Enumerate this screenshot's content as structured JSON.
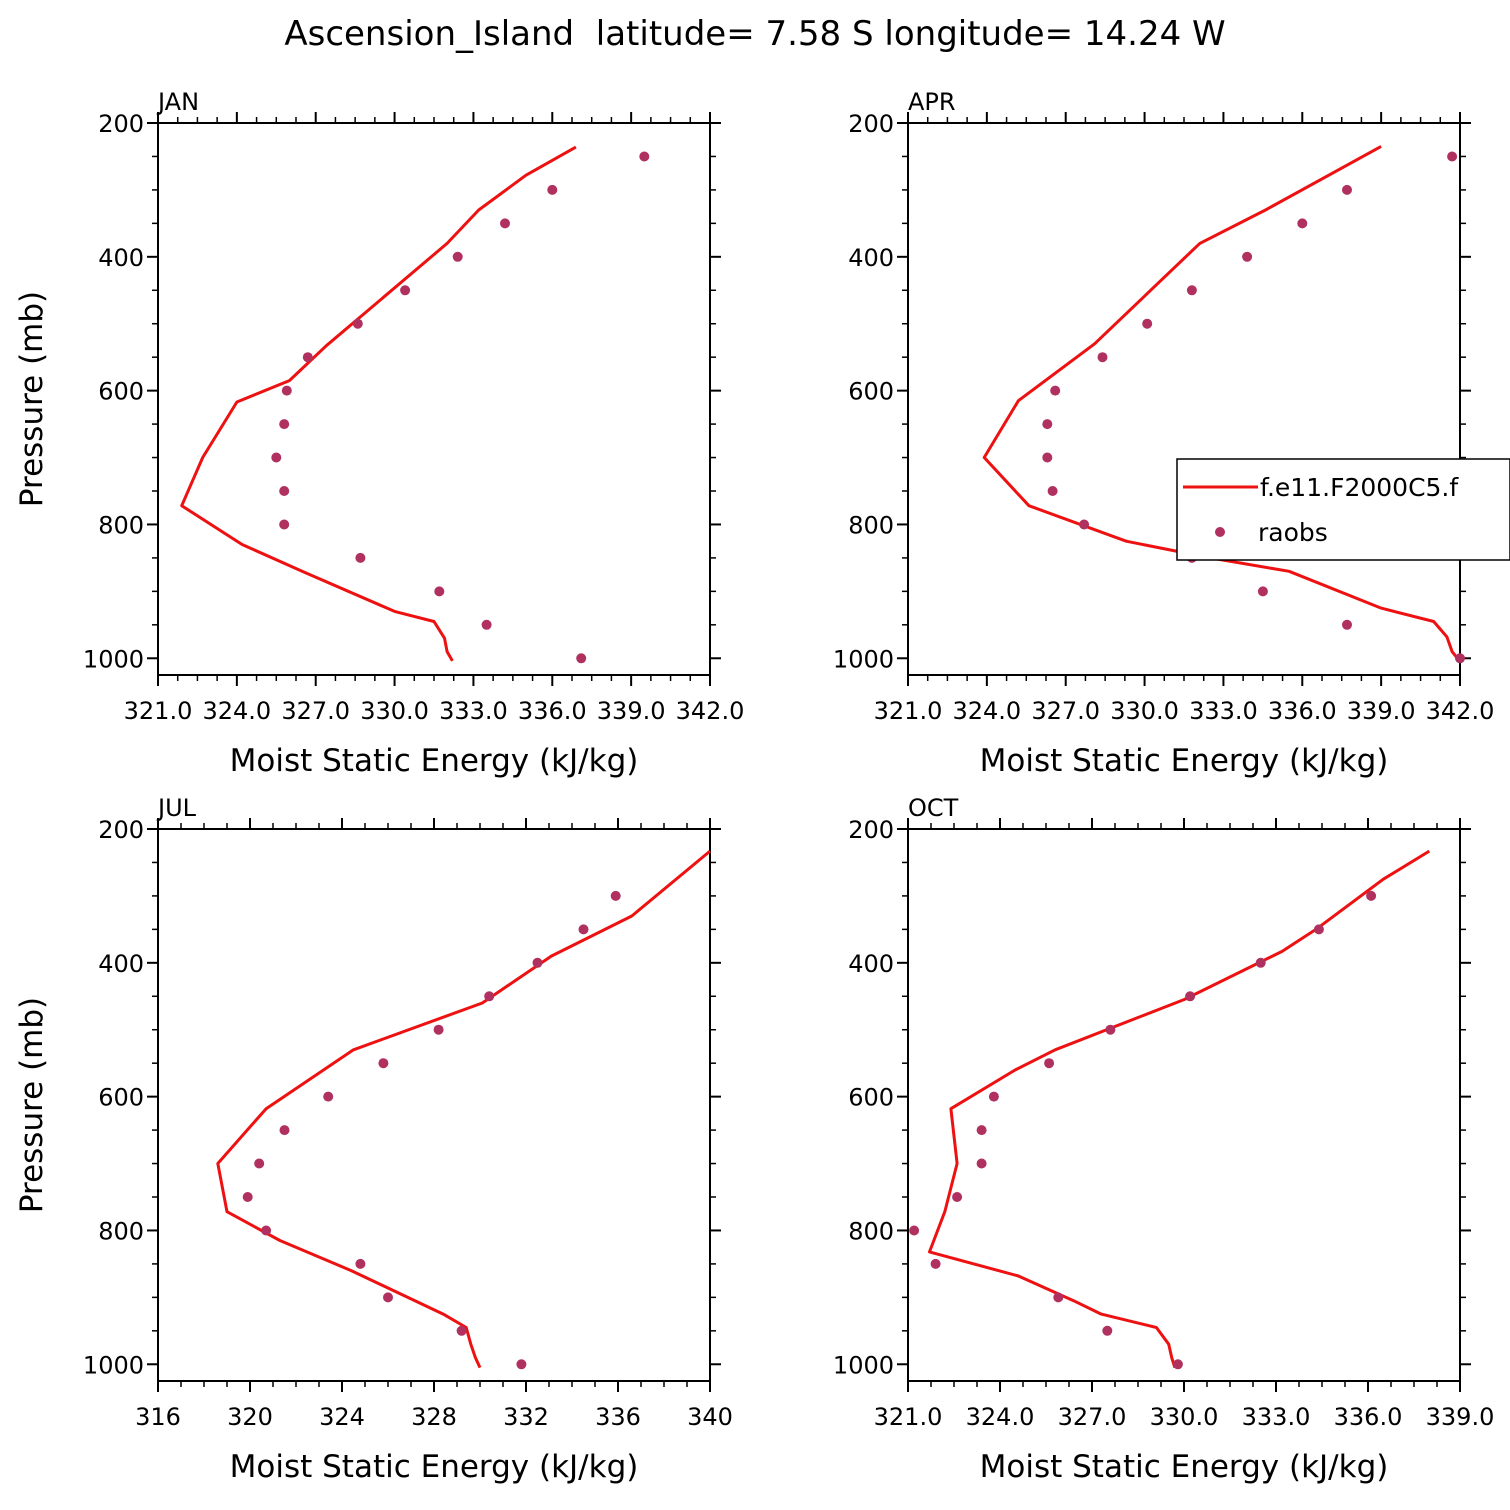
{
  "figure": {
    "title": "Ascension_Island  latitude= 7.58 S longitude= 14.24 W"
  },
  "legend": {
    "model_label": "f.e11.F2000C5.f",
    "obs_label": "raobs",
    "location": "right of APR panel"
  },
  "colors": {
    "model_line": "#ee1111",
    "obs_marker": "#b03060"
  },
  "chart_data": [
    {
      "type": "line",
      "panel": "JAN",
      "title": "JAN",
      "xlabel": "Moist Static Energy (kJ/kg)",
      "ylabel": "Pressure (mb)",
      "xlim": [
        321.0,
        342.0
      ],
      "ylim": [
        1025,
        200
      ],
      "y_inverted": true,
      "xticks": [
        321.0,
        324.0,
        327.0,
        330.0,
        333.0,
        336.0,
        339.0,
        342.0
      ],
      "xtick_labels": [
        "321.0",
        "324.0",
        "327.0",
        "330.0",
        "333.0",
        "336.0",
        "339.0",
        "342.0"
      ],
      "yticks": [
        200,
        400,
        600,
        800,
        1000
      ],
      "ytick_labels": [
        "200",
        "400",
        "600",
        "800",
        "1000"
      ],
      "series": [
        {
          "name": "f.e11.F2000C5.f",
          "kind": "line",
          "points": [
            [
              336.9,
              236
            ],
            [
              335.0,
              278
            ],
            [
              333.2,
              330
            ],
            [
              332.0,
              380
            ],
            [
              327.4,
              533
            ],
            [
              326.0,
              585
            ],
            [
              324.0,
              617
            ],
            [
              322.7,
              700
            ],
            [
              321.9,
              772
            ],
            [
              324.2,
              830
            ],
            [
              326.6,
              872
            ],
            [
              330.0,
              930
            ],
            [
              331.5,
              945
            ],
            [
              331.9,
              970
            ],
            [
              332.0,
              990
            ],
            [
              332.2,
              1004
            ]
          ]
        },
        {
          "name": "raobs",
          "kind": "scatter",
          "points": [
            [
              339.5,
              250
            ],
            [
              336.0,
              300
            ],
            [
              334.2,
              350
            ],
            [
              332.4,
              400
            ],
            [
              330.4,
              450
            ],
            [
              328.6,
              500
            ],
            [
              326.7,
              550
            ],
            [
              325.9,
              600
            ],
            [
              325.8,
              650
            ],
            [
              325.5,
              700
            ],
            [
              325.8,
              750
            ],
            [
              325.8,
              800
            ],
            [
              328.7,
              850
            ],
            [
              331.7,
              900
            ],
            [
              333.5,
              950
            ],
            [
              337.1,
              1000
            ]
          ]
        }
      ]
    },
    {
      "type": "line",
      "panel": "APR",
      "title": "APR",
      "xlabel": "Moist Static Energy (kJ/kg)",
      "ylabel": "",
      "xlim": [
        321.0,
        342.0
      ],
      "ylim": [
        1025,
        200
      ],
      "y_inverted": true,
      "xticks": [
        321.0,
        324.0,
        327.0,
        330.0,
        333.0,
        336.0,
        339.0,
        342.0
      ],
      "xtick_labels": [
        "321.0",
        "324.0",
        "327.0",
        "330.0",
        "333.0",
        "336.0",
        "339.0",
        "342.0"
      ],
      "yticks": [
        200,
        400,
        600,
        800,
        1000
      ],
      "ytick_labels": [
        "200",
        "400",
        "600",
        "800",
        "1000"
      ],
      "series": [
        {
          "name": "f.e11.F2000C5.f",
          "kind": "line",
          "points": [
            [
              339.0,
              235
            ],
            [
              334.6,
              330
            ],
            [
              332.1,
              380
            ],
            [
              328.1,
              530
            ],
            [
              325.2,
              615
            ],
            [
              323.9,
              700
            ],
            [
              325.6,
              772
            ],
            [
              329.3,
              825
            ],
            [
              332.5,
              850
            ],
            [
              335.5,
              870
            ],
            [
              339.0,
              925
            ],
            [
              341.0,
              945
            ],
            [
              341.5,
              968
            ],
            [
              341.7,
              990
            ],
            [
              342.0,
              1005
            ]
          ]
        },
        {
          "name": "raobs",
          "kind": "scatter",
          "points": [
            [
              341.7,
              250
            ],
            [
              337.7,
              300
            ],
            [
              336.0,
              350
            ],
            [
              333.9,
              400
            ],
            [
              331.8,
              450
            ],
            [
              330.1,
              500
            ],
            [
              328.4,
              550
            ],
            [
              326.6,
              600
            ],
            [
              326.3,
              650
            ],
            [
              326.3,
              700
            ],
            [
              326.5,
              750
            ],
            [
              327.7,
              800
            ],
            [
              331.8,
              850
            ],
            [
              334.5,
              900
            ],
            [
              337.7,
              950
            ],
            [
              342.0,
              1000
            ]
          ]
        }
      ]
    },
    {
      "type": "line",
      "panel": "JUL",
      "title": "JUL",
      "xlabel": "Moist Static Energy (kJ/kg)",
      "ylabel": "Pressure (mb)",
      "xlim": [
        316,
        340
      ],
      "ylim": [
        1025,
        200
      ],
      "y_inverted": true,
      "xticks": [
        316,
        320,
        324,
        328,
        332,
        336,
        340
      ],
      "xtick_labels": [
        "316",
        "320",
        "324",
        "328",
        "332",
        "336",
        "340"
      ],
      "yticks": [
        200,
        400,
        600,
        800,
        1000
      ],
      "ytick_labels": [
        "200",
        "400",
        "600",
        "800",
        "1000"
      ],
      "series": [
        {
          "name": "f.e11.F2000C5.f",
          "kind": "line",
          "points": [
            [
              340.0,
              233
            ],
            [
              336.6,
              330
            ],
            [
              333.1,
              390
            ],
            [
              330.1,
              460
            ],
            [
              324.5,
              530
            ],
            [
              320.7,
              618
            ],
            [
              318.6,
              700
            ],
            [
              319.0,
              772
            ],
            [
              321.3,
              815
            ],
            [
              324.4,
              860
            ],
            [
              328.4,
              925
            ],
            [
              329.4,
              945
            ],
            [
              329.6,
              970
            ],
            [
              329.8,
              990
            ],
            [
              330.0,
              1005
            ]
          ]
        },
        {
          "name": "raobs",
          "kind": "scatter",
          "points": [
            [
              335.9,
              300
            ],
            [
              334.5,
              350
            ],
            [
              332.5,
              400
            ],
            [
              330.4,
              450
            ],
            [
              328.2,
              500
            ],
            [
              325.8,
              550
            ],
            [
              323.4,
              600
            ],
            [
              321.5,
              650
            ],
            [
              320.4,
              700
            ],
            [
              319.9,
              750
            ],
            [
              320.7,
              800
            ],
            [
              324.8,
              850
            ],
            [
              326.0,
              900
            ],
            [
              329.2,
              950
            ],
            [
              331.8,
              1000
            ]
          ]
        }
      ]
    },
    {
      "type": "line",
      "panel": "OCT",
      "title": "OCT",
      "xlabel": "Moist Static Energy (kJ/kg)",
      "ylabel": "",
      "xlim": [
        321.0,
        339.0
      ],
      "ylim": [
        1025,
        200
      ],
      "y_inverted": true,
      "xticks": [
        321.0,
        324.0,
        327.0,
        330.0,
        333.0,
        336.0,
        339.0
      ],
      "xtick_labels": [
        "321.0",
        "324.0",
        "327.0",
        "330.0",
        "333.0",
        "336.0",
        "339.0"
      ],
      "yticks": [
        200,
        400,
        600,
        800,
        1000
      ],
      "ytick_labels": [
        "200",
        "400",
        "600",
        "800",
        "1000"
      ],
      "series": [
        {
          "name": "f.e11.F2000C5.f",
          "kind": "line",
          "points": [
            [
              338.0,
              233
            ],
            [
              336.5,
              275
            ],
            [
              334.3,
              350
            ],
            [
              333.2,
              383
            ],
            [
              330.0,
              455
            ],
            [
              325.8,
              530
            ],
            [
              324.5,
              560
            ],
            [
              322.4,
              618
            ],
            [
              322.6,
              700
            ],
            [
              322.2,
              772
            ],
            [
              321.7,
              832
            ],
            [
              324.6,
              868
            ],
            [
              326.4,
              905
            ],
            [
              327.3,
              925
            ],
            [
              329.1,
              945
            ],
            [
              329.5,
              970
            ],
            [
              329.6,
              990
            ],
            [
              329.7,
              1005
            ]
          ]
        },
        {
          "name": "raobs",
          "kind": "scatter",
          "points": [
            [
              336.1,
              300
            ],
            [
              334.4,
              350
            ],
            [
              332.5,
              400
            ],
            [
              330.2,
              450
            ],
            [
              327.6,
              500
            ],
            [
              325.6,
              550
            ],
            [
              323.8,
              600
            ],
            [
              323.4,
              650
            ],
            [
              323.4,
              700
            ],
            [
              322.6,
              750
            ],
            [
              321.2,
              800
            ],
            [
              321.9,
              850
            ],
            [
              325.9,
              900
            ],
            [
              327.5,
              950
            ],
            [
              329.8,
              1000
            ]
          ]
        }
      ]
    }
  ]
}
